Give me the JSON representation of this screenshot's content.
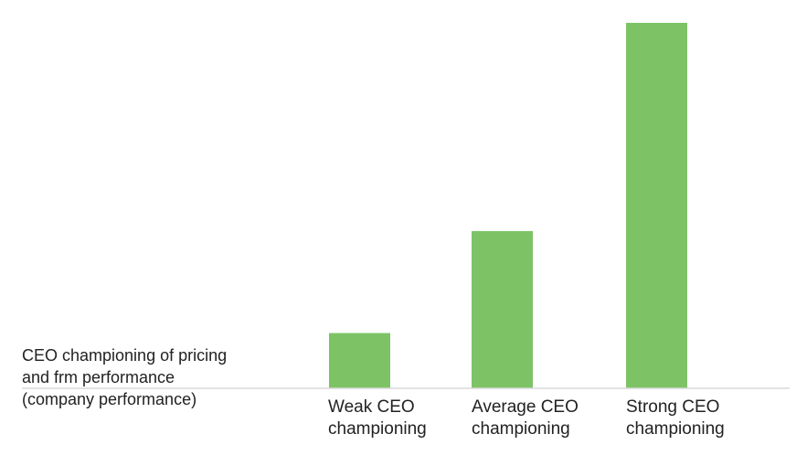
{
  "chart_data": {
    "type": "bar",
    "categories": [
      [
        "Weak CEO",
        "championing"
      ],
      [
        "Average CEO",
        "championing"
      ],
      [
        "Strong CEO",
        "championing"
      ]
    ],
    "values": [
      13,
      37,
      86
    ],
    "ylim": [
      0,
      86
    ],
    "ylabel_lines": [
      "CEO championing of pricing",
      "and frm performance",
      "(company performance)"
    ],
    "bar_color": "#7DC366",
    "axis_color": "#D9D9D9",
    "grid": false,
    "legend": "none"
  }
}
